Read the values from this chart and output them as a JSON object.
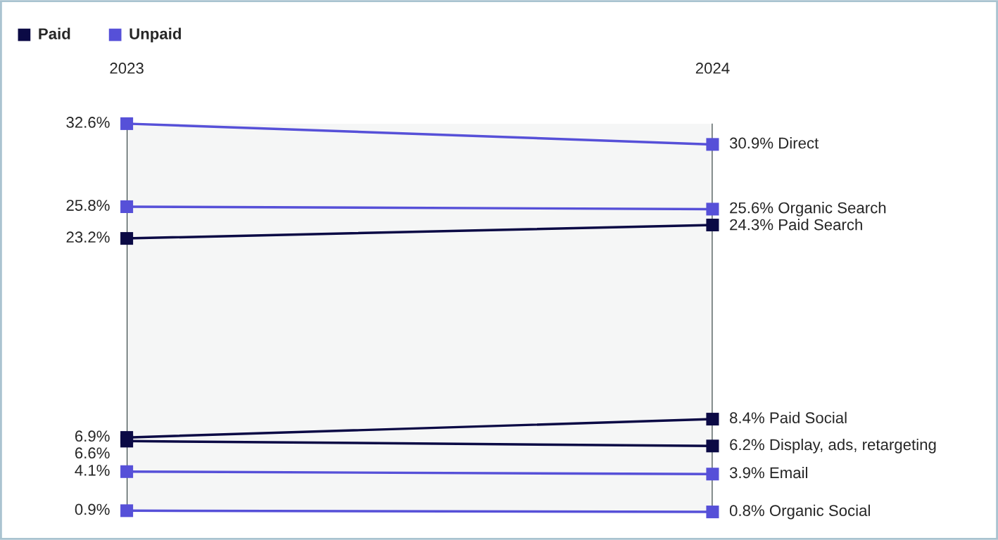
{
  "chart_data": {
    "type": "line",
    "categories": [
      "2023",
      "2024"
    ],
    "marker": "square",
    "line_style": "solid",
    "grid": "x",
    "annotations": [
      "Paid",
      "Unpaid"
    ],
    "bands": [
      {
        "axis": "y",
        "from": 0.8,
        "to": 32.6,
        "color": "#f5f6f6"
      }
    ],
    "series": [
      {
        "name": "Paid Search",
        "color": "#0b0a45",
        "values": [
          23.2,
          24.3
        ],
        "value_labels": [
          "23.2%",
          "24.3%"
        ]
      },
      {
        "name": "Paid Social",
        "color": "#0b0a45",
        "values": [
          6.9,
          8.4
        ],
        "value_labels": [
          "6.9%",
          "8.4%"
        ]
      },
      {
        "name": "Display, ads, retargeting",
        "color": "#0b0a45",
        "values": [
          6.6,
          6.2
        ],
        "value_labels": [
          "6.6%",
          "6.2%"
        ]
      },
      {
        "name": "Direct",
        "color": "#5650d8",
        "values": [
          32.6,
          30.9
        ],
        "value_labels": [
          "32.6%",
          "30.9%"
        ]
      },
      {
        "name": "Organic Search",
        "color": "#5650d8",
        "values": [
          25.8,
          25.6
        ],
        "value_labels": [
          "25.8%",
          "25.6%"
        ]
      },
      {
        "name": "Email",
        "color": "#5650d8",
        "values": [
          4.1,
          3.9
        ],
        "value_labels": [
          "4.1%",
          "3.9%"
        ]
      },
      {
        "name": "Organic Social",
        "color": "#5650d8",
        "values": [
          0.9,
          0.8
        ],
        "value_labels": [
          "0.9%",
          "0.8%"
        ]
      }
    ]
  }
}
